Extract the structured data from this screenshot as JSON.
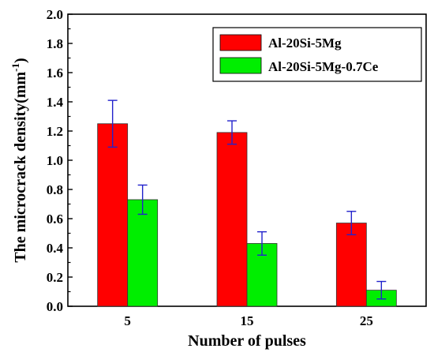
{
  "chart_data": {
    "type": "bar",
    "categories": [
      "5",
      "15",
      "25"
    ],
    "series": [
      {
        "name": "Al-20Si-5Mg",
        "values": [
          1.25,
          1.19,
          0.57
        ],
        "errors": [
          0.16,
          0.08,
          0.08
        ],
        "color": "#ff0000"
      },
      {
        "name": "Al-20Si-5Mg-0.7Ce",
        "values": [
          0.73,
          0.43,
          0.11
        ],
        "errors": [
          0.1,
          0.08,
          0.06
        ],
        "color": "#00ee00"
      }
    ],
    "xlabel": "Number of pulses",
    "ylabel_prefix": "The  microcrack density(mm",
    "ylabel_sup": "-1",
    "ylabel_suffix": ")",
    "ylim": [
      0,
      2.0
    ],
    "yticks": [
      "0.0",
      "0.2",
      "0.4",
      "0.6",
      "0.8",
      "1.0",
      "1.2",
      "1.4",
      "1.6",
      "1.8",
      "2.0"
    ],
    "error_bar_color": "#2222cc",
    "legend_position": "top-right",
    "grid": false
  }
}
